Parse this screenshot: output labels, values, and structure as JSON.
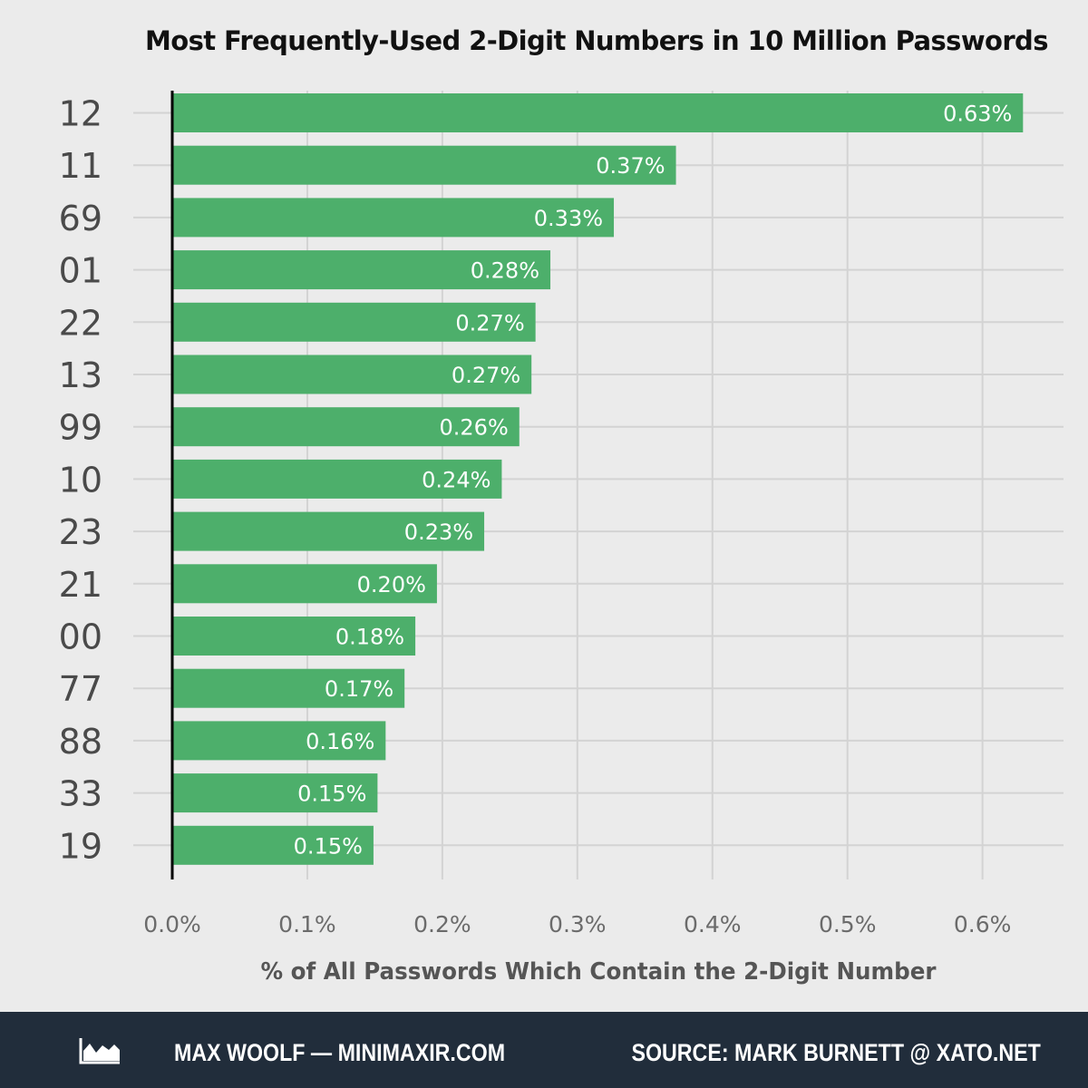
{
  "chart_data": {
    "type": "bar",
    "orientation": "horizontal",
    "title": "Most Frequently-Used 2-Digit Numbers in 10 Million Passwords",
    "xlabel": "% of All Passwords Which Contain the 2-Digit Number",
    "ylabel": "",
    "categories": [
      "12",
      "11",
      "69",
      "01",
      "22",
      "13",
      "99",
      "10",
      "23",
      "21",
      "00",
      "77",
      "88",
      "33",
      "19"
    ],
    "values": [
      0.63,
      0.373,
      0.327,
      0.28,
      0.269,
      0.266,
      0.257,
      0.244,
      0.231,
      0.196,
      0.18,
      0.172,
      0.158,
      0.152,
      0.149
    ],
    "data_labels": [
      "0.63%",
      "0.37%",
      "0.33%",
      "0.28%",
      "0.27%",
      "0.27%",
      "0.26%",
      "0.24%",
      "0.23%",
      "0.20%",
      "0.18%",
      "0.17%",
      "0.16%",
      "0.15%",
      "0.15%"
    ],
    "xticks": [
      0,
      0.1,
      0.2,
      0.3,
      0.4,
      0.5,
      0.6
    ],
    "xtick_labels": [
      "0.0%",
      "0.1%",
      "0.2%",
      "0.3%",
      "0.4%",
      "0.5%",
      "0.6%"
    ],
    "xlim": [
      0,
      0.66
    ],
    "grid": true,
    "legend": "none",
    "colors": {
      "bar": "#4daf6b",
      "background": "#ebebeb",
      "grid": "#d3d3d3",
      "data_label": "#ffffff"
    }
  },
  "footer": {
    "left": "MAX WOOLF — MINIMAXIR.COM",
    "right": "SOURCE: MARK BURNETT @ XATO.NET",
    "logo_icon": "area-chart-icon",
    "background": "#212d3b"
  }
}
